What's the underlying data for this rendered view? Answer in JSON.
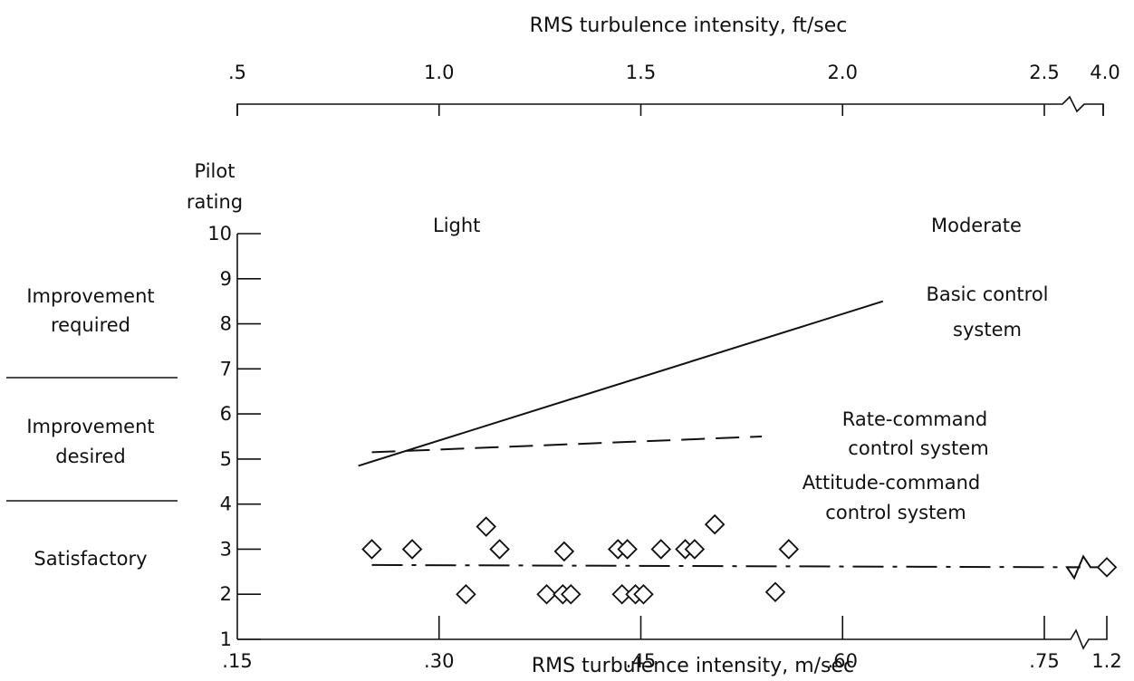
{
  "chart_data": {
    "type": "scatter",
    "top_axis_title": "RMS turbulence intensity, ft/sec",
    "top_ticks": [
      {
        "label": ".5",
        "value": 0.5
      },
      {
        "label": "1.0",
        "value": 1.0
      },
      {
        "label": "1.5",
        "value": 1.5
      },
      {
        "label": "2.0",
        "value": 2.0
      },
      {
        "label": "2.5",
        "value": 2.5
      },
      {
        "label": "4.0",
        "value": 4.0
      }
    ],
    "xlabel": "RMS turbulence intensity, m/sec",
    "x_ticks": [
      {
        "label": ".15",
        "value": 0.15
      },
      {
        "label": ".30",
        "value": 0.3
      },
      {
        "label": ".45",
        "value": 0.45
      },
      {
        "label": ".60",
        "value": 0.6
      },
      {
        "label": ".75",
        "value": 0.75
      },
      {
        "label": "1.2",
        "value": 1.2
      }
    ],
    "xlim": [
      0.15,
      1.2
    ],
    "x_axis_break": [
      0.75,
      1.2
    ],
    "ylabel": [
      "Pilot",
      "rating"
    ],
    "y_ticks": [
      "1",
      "2",
      "3",
      "4",
      "5",
      "6",
      "7",
      "8",
      "9",
      "10"
    ],
    "ylim": [
      1,
      10
    ],
    "grid": false,
    "rating_categories": [
      {
        "label_lines": [
          "Improvement",
          "required"
        ]
      },
      {
        "label_lines": [
          "Improvement",
          "desired"
        ]
      },
      {
        "label_lines": [
          "Satisfactory"
        ]
      }
    ],
    "region_labels": [
      "Light",
      "Moderate"
    ],
    "series": [
      {
        "name": "Basic control system",
        "label_lines": [
          "Basic control",
          "system"
        ],
        "style": "solid",
        "points": [
          [
            0.24,
            4.85
          ],
          [
            0.63,
            8.5
          ]
        ]
      },
      {
        "name": "Rate-command control system",
        "label_lines": [
          "Rate-command",
          "control system"
        ],
        "style": "dashed",
        "points": [
          [
            0.25,
            5.15
          ],
          [
            0.54,
            5.5
          ]
        ]
      },
      {
        "name": "Attitude-command control system",
        "label_lines": [
          "Attitude-command",
          "control system"
        ],
        "style": "dashdot",
        "points": [
          [
            0.25,
            2.65
          ],
          [
            0.76,
            2.6
          ]
        ]
      }
    ],
    "attitude_command_ratings": [
      {
        "x": 0.25,
        "y": 3.0
      },
      {
        "x": 0.28,
        "y": 3.0
      },
      {
        "x": 0.32,
        "y": 2.0
      },
      {
        "x": 0.335,
        "y": 3.5
      },
      {
        "x": 0.345,
        "y": 3.0
      },
      {
        "x": 0.38,
        "y": 2.0
      },
      {
        "x": 0.392,
        "y": 2.0
      },
      {
        "x": 0.393,
        "y": 2.95
      },
      {
        "x": 0.398,
        "y": 2.0
      },
      {
        "x": 0.433,
        "y": 3.0
      },
      {
        "x": 0.436,
        "y": 2.0
      },
      {
        "x": 0.44,
        "y": 3.0
      },
      {
        "x": 0.446,
        "y": 2.0
      },
      {
        "x": 0.452,
        "y": 2.0
      },
      {
        "x": 0.465,
        "y": 3.0
      },
      {
        "x": 0.483,
        "y": 3.0
      },
      {
        "x": 0.49,
        "y": 3.0
      },
      {
        "x": 0.505,
        "y": 3.55
      },
      {
        "x": 0.55,
        "y": 2.05
      },
      {
        "x": 0.56,
        "y": 3.0
      },
      {
        "x": 1.2,
        "y": 2.6
      }
    ]
  }
}
